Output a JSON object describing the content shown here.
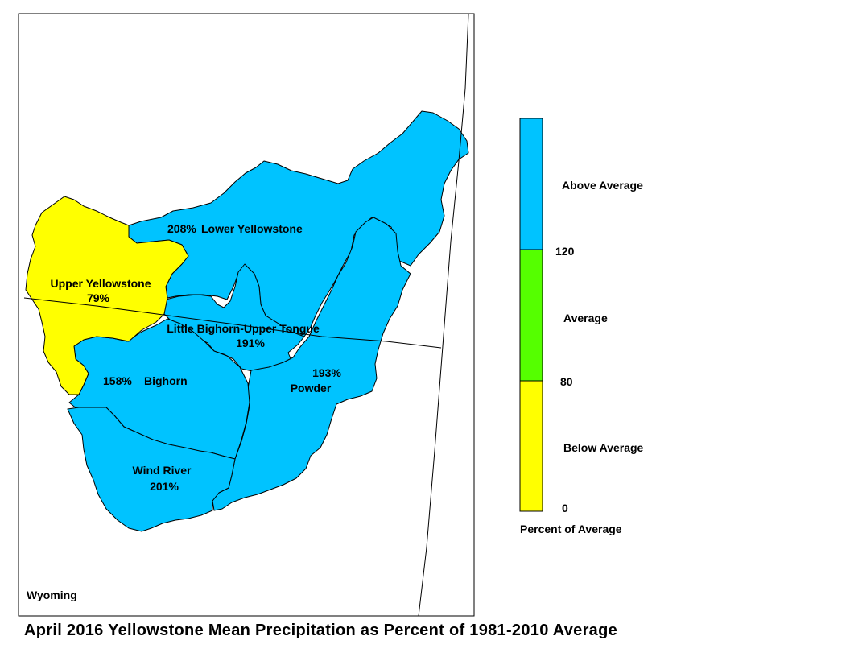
{
  "title": "April 2016 Yellowstone Mean Precipitation as Percent of 1981-2010 Average",
  "state_label": "Wyoming",
  "colors": {
    "above_average": "#00c3ff",
    "average": "#55ff00",
    "below_average": "#ffff00",
    "boundary": "#000000"
  },
  "basins": [
    {
      "id": "upper-yellowstone",
      "name": "Upper Yellowstone",
      "percent": "79%",
      "category": "below_average"
    },
    {
      "id": "lower-yellowstone",
      "name": "Lower Yellowstone",
      "percent": "208%",
      "category": "above_average"
    },
    {
      "id": "little-bighorn-upper-tongue",
      "name": "Little Bighorn-Upper Tongue",
      "percent": "191%",
      "category": "above_average"
    },
    {
      "id": "bighorn",
      "name": "Bighorn",
      "percent": "158%",
      "category": "above_average"
    },
    {
      "id": "powder",
      "name": "Powder",
      "percent": "193%",
      "category": "above_average"
    },
    {
      "id": "wind-river",
      "name": "Wind River",
      "percent": "201%",
      "category": "above_average"
    }
  ],
  "legend": {
    "classes": [
      {
        "label": "Above Average",
        "color": "#00c3ff",
        "from": 120,
        "to": null
      },
      {
        "label": "Average",
        "color": "#55ff00",
        "from": 80,
        "to": 120
      },
      {
        "label": "Below Average",
        "color": "#ffff00",
        "from": 0,
        "to": 80
      }
    ],
    "ticks": [
      "120",
      "80",
      "0"
    ],
    "caption": "Percent of Average"
  }
}
